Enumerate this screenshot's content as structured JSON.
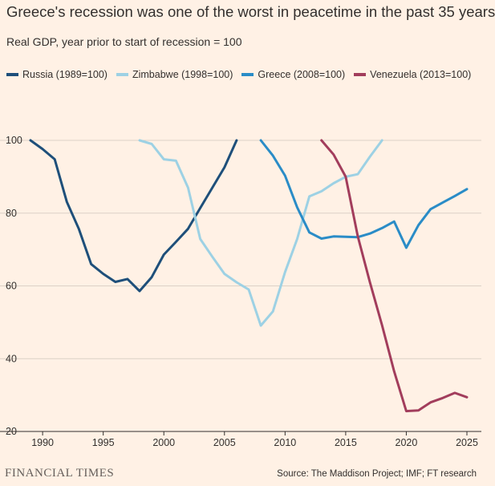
{
  "chart_data": {
    "type": "line",
    "title": "Greece's recession was one of the worst in peacetime in the past 35 years",
    "subtitle": "Real GDP, year prior to start of recession = 100",
    "xlim": [
      1989,
      2025
    ],
    "ylim": [
      20,
      100
    ],
    "x_ticks": [
      1990,
      1995,
      2000,
      2005,
      2010,
      2015,
      2020,
      2025
    ],
    "y_ticks": [
      20,
      40,
      60,
      80,
      100
    ],
    "grid": true,
    "series": [
      {
        "name": "Russia (1989=100)",
        "color": "#1e4f7a",
        "points": [
          [
            1989,
            100
          ],
          [
            1990,
            97.6
          ],
          [
            1991,
            94.8
          ],
          [
            1992,
            83.1
          ],
          [
            1993,
            75.6
          ],
          [
            1994,
            66.0
          ],
          [
            1995,
            63.3
          ],
          [
            1996,
            61.1
          ],
          [
            1997,
            61.9
          ],
          [
            1998,
            58.6
          ],
          [
            1999,
            62.4
          ],
          [
            2000,
            68.6
          ],
          [
            2001,
            72.1
          ],
          [
            2002,
            75.7
          ],
          [
            2003,
            81.4
          ],
          [
            2004,
            87.0
          ],
          [
            2005,
            92.6
          ],
          [
            2006,
            100
          ]
        ]
      },
      {
        "name": "Zimbabwe (1998=100)",
        "color": "#9dd1e4",
        "points": [
          [
            1998,
            100
          ],
          [
            1999,
            99.0
          ],
          [
            2000,
            94.8
          ],
          [
            2001,
            94.4
          ],
          [
            2002,
            87.0
          ],
          [
            2003,
            72.9
          ],
          [
            2004,
            68.0
          ],
          [
            2005,
            63.3
          ],
          [
            2006,
            61.0
          ],
          [
            2007,
            59.0
          ],
          [
            2008,
            49.1
          ],
          [
            2009,
            53.0
          ],
          [
            2010,
            63.8
          ],
          [
            2011,
            72.9
          ],
          [
            2012,
            84.6
          ],
          [
            2013,
            86.0
          ],
          [
            2014,
            88.2
          ],
          [
            2015,
            90.0
          ],
          [
            2016,
            90.7
          ],
          [
            2017,
            95.5
          ],
          [
            2018,
            100
          ]
        ]
      },
      {
        "name": "Greece (2008=100)",
        "color": "#2a8cc7",
        "points": [
          [
            2008,
            100
          ],
          [
            2009,
            95.8
          ],
          [
            2010,
            90.3
          ],
          [
            2011,
            81.6
          ],
          [
            2012,
            74.7
          ],
          [
            2013,
            73.0
          ],
          [
            2014,
            73.6
          ],
          [
            2015,
            73.5
          ],
          [
            2016,
            73.4
          ],
          [
            2017,
            74.4
          ],
          [
            2018,
            75.9
          ],
          [
            2019,
            77.7
          ],
          [
            2020,
            70.5
          ],
          [
            2021,
            76.7
          ],
          [
            2022,
            81.1
          ],
          [
            2023,
            82.9
          ],
          [
            2024,
            84.7
          ],
          [
            2025,
            86.6
          ]
        ]
      },
      {
        "name": "Venezuela (2013=100)",
        "color": "#a23d5c",
        "points": [
          [
            2013,
            100
          ],
          [
            2014,
            96.1
          ],
          [
            2015,
            90.0
          ],
          [
            2016,
            73.6
          ],
          [
            2017,
            61.0
          ],
          [
            2018,
            49.2
          ],
          [
            2019,
            36.5
          ],
          [
            2020,
            25.6
          ],
          [
            2021,
            25.8
          ],
          [
            2022,
            28.0
          ],
          [
            2023,
            29.2
          ],
          [
            2024,
            30.6
          ],
          [
            2025,
            29.4
          ]
        ]
      }
    ]
  },
  "footer": {
    "brand": "FINANCIAL TIMES",
    "source": "Source: The Maddison Project; IMF; FT research"
  }
}
